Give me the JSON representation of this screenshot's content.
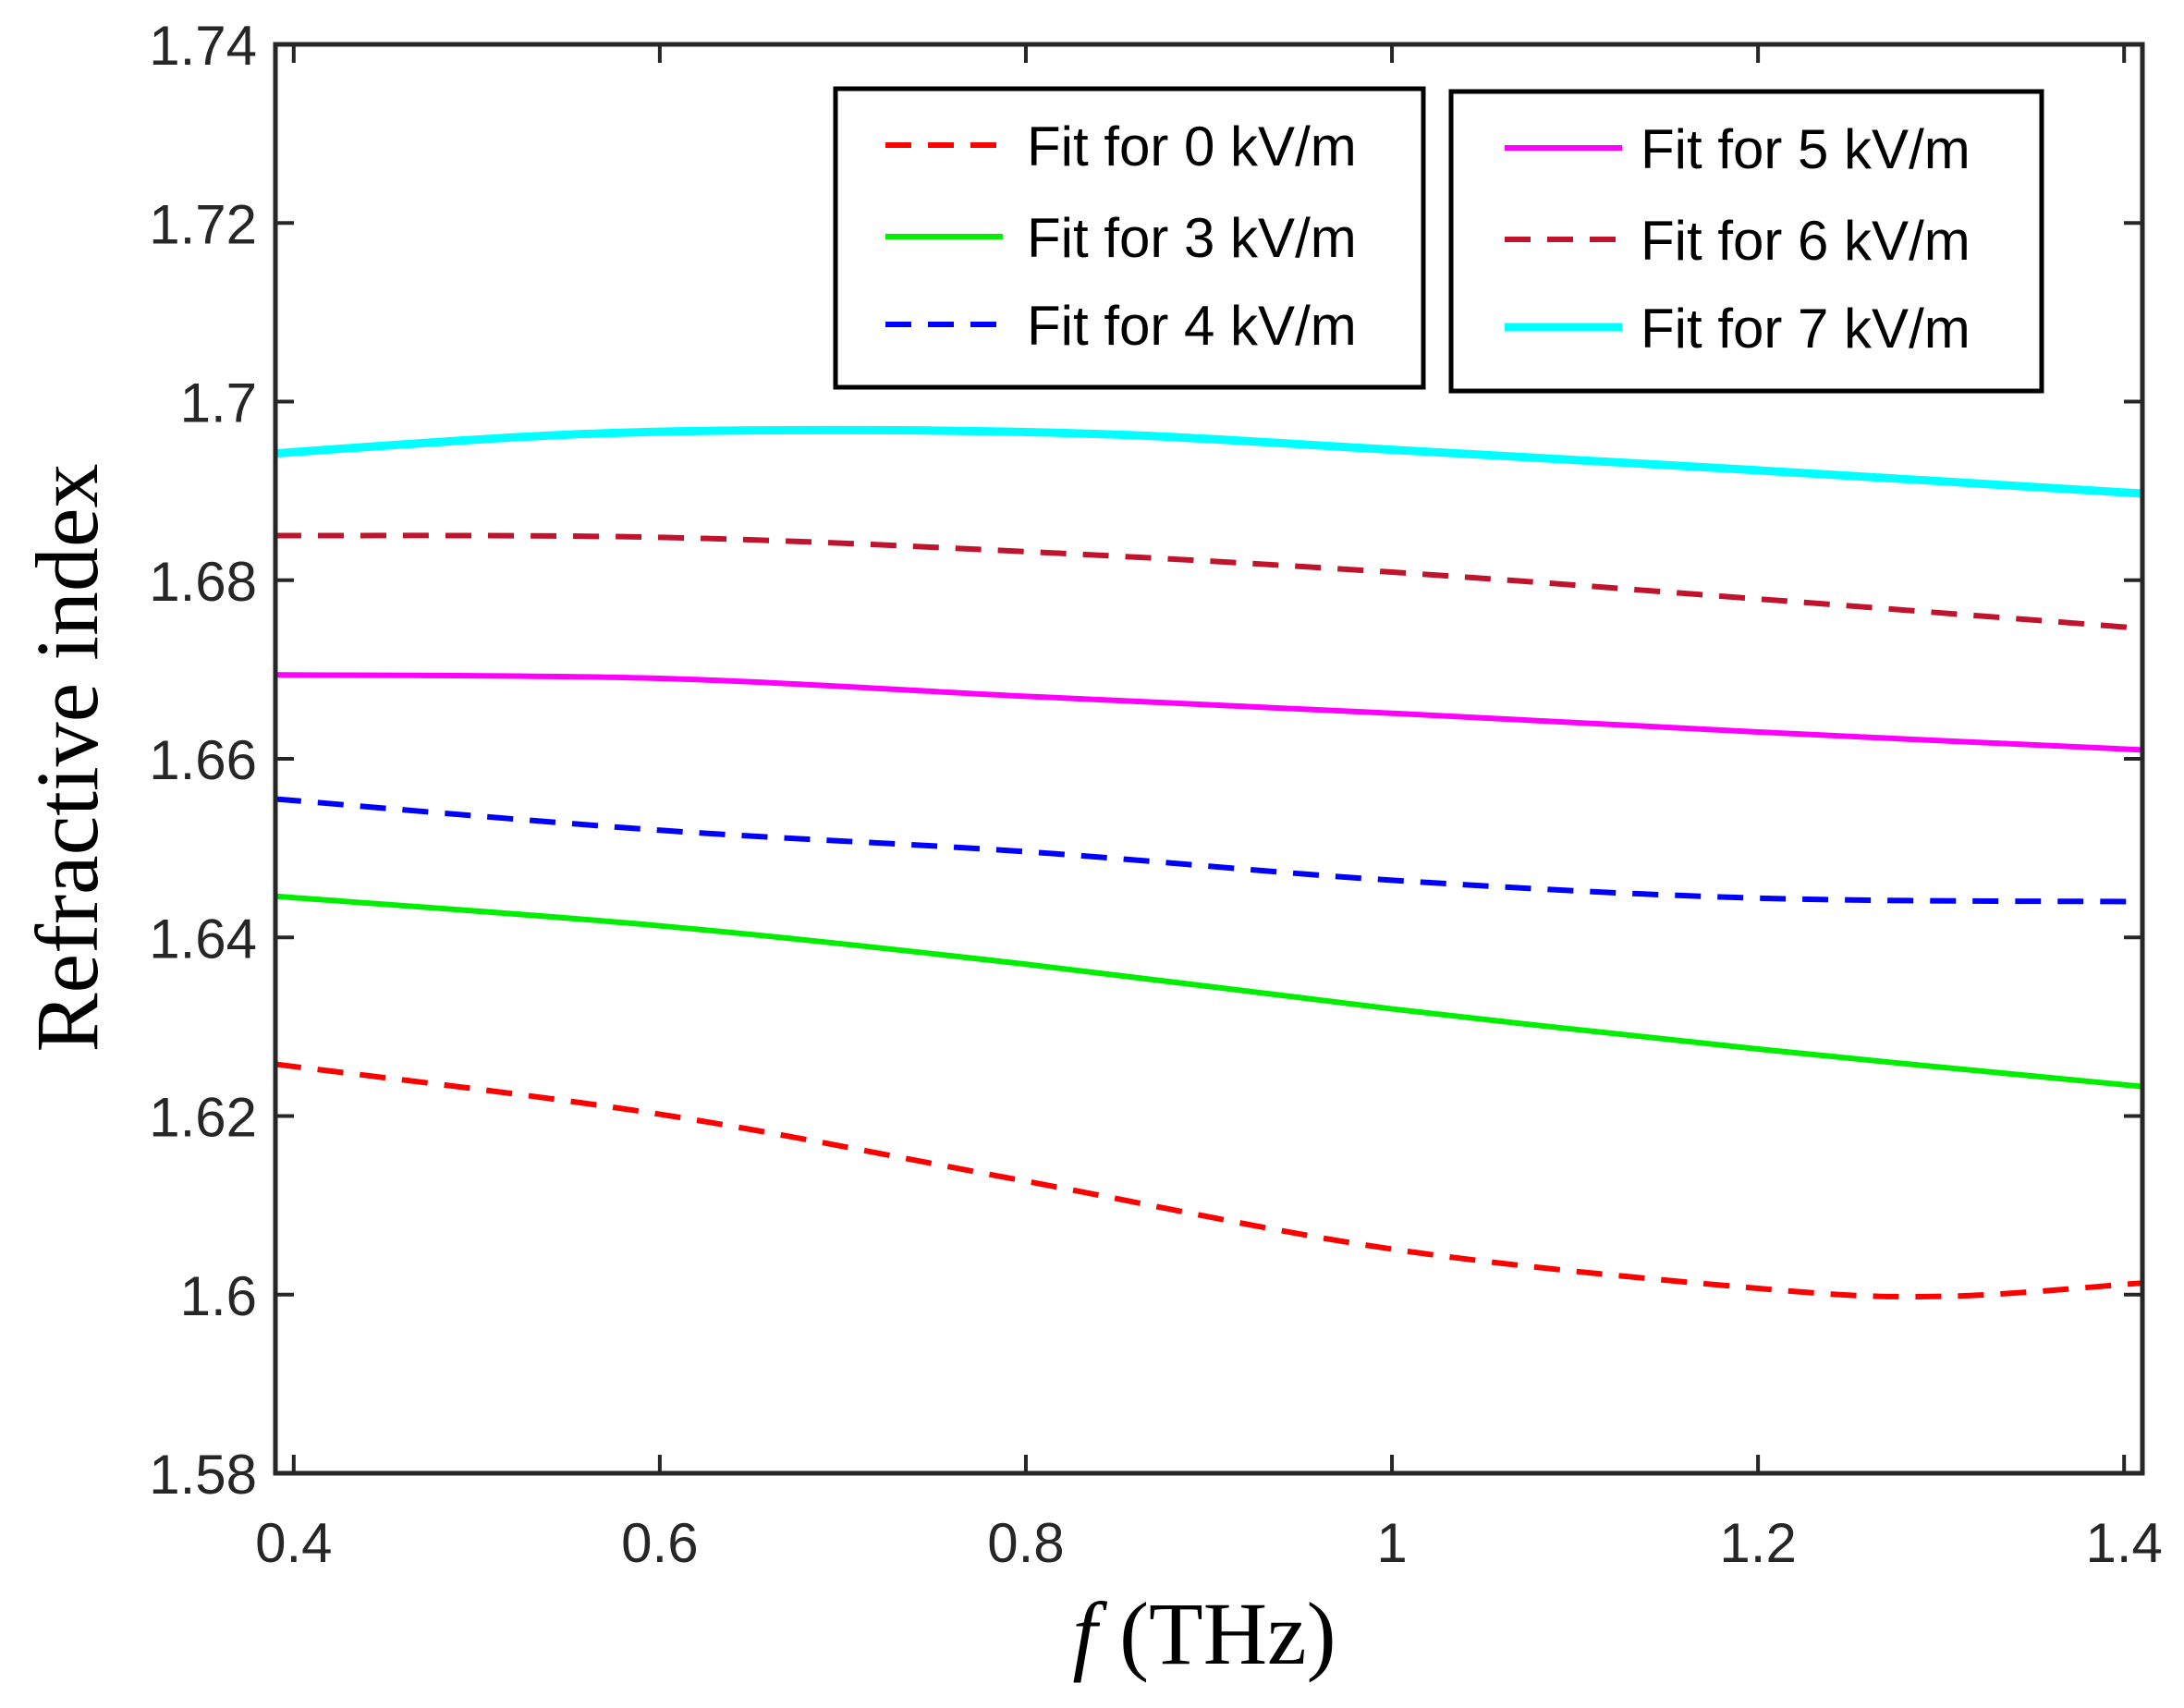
{
  "chart_data": {
    "type": "line",
    "title": "",
    "xlabel_italic": "f",
    "xlabel_rest": " (THz)",
    "ylabel": "Refractive index",
    "xlim": [
      0.39,
      1.41
    ],
    "ylim": [
      1.58,
      1.74
    ],
    "grid": false,
    "legend_placement": "top-right, two boxes",
    "xticks": [
      0.4,
      0.6,
      0.8,
      1,
      1.2,
      1.4
    ],
    "xtick_labels": [
      "0.4",
      "0.6",
      "0.8",
      "1",
      "1.2",
      "1.4"
    ],
    "yticks": [
      1.58,
      1.6,
      1.62,
      1.64,
      1.66,
      1.68,
      1.7,
      1.72,
      1.74
    ],
    "ytick_labels": [
      "1.58",
      "1.6",
      "1.62",
      "1.64",
      "1.66",
      "1.68",
      "1.7",
      "1.72",
      "1.74"
    ],
    "series": [
      {
        "name": "Fit for 0 kV/m",
        "color": "#ff0000",
        "style": "dashed",
        "x": [
          0.39,
          0.6,
          0.8,
          1.0,
          1.2,
          1.3,
          1.41
        ],
        "y": [
          1.6258,
          1.6202,
          1.6127,
          1.6051,
          1.6007,
          1.5998,
          1.6013
        ]
      },
      {
        "name": "Fit for 3 kV/m",
        "color": "#00ee00",
        "style": "solid",
        "x": [
          0.39,
          0.6,
          0.8,
          1.0,
          1.2,
          1.41
        ],
        "y": [
          1.6446,
          1.6413,
          1.637,
          1.632,
          1.6275,
          1.6233
        ]
      },
      {
        "name": "Fit for 4 kV/m",
        "color": "#0000ff",
        "style": "dashed",
        "x": [
          0.39,
          0.6,
          0.8,
          1.0,
          1.2,
          1.41
        ],
        "y": [
          1.6555,
          1.652,
          1.6496,
          1.6464,
          1.6444,
          1.644
        ]
      },
      {
        "name": "Fit for 5 kV/m",
        "color": "#ff00ff",
        "style": "solid",
        "x": [
          0.39,
          0.6,
          0.8,
          1.0,
          1.2,
          1.41
        ],
        "y": [
          1.6694,
          1.669,
          1.667,
          1.6651,
          1.663,
          1.661
        ]
      },
      {
        "name": "Fit for 6 kV/m",
        "color": "#c0142c",
        "style": "dashed",
        "x": [
          0.39,
          0.6,
          0.8,
          1.0,
          1.2,
          1.41
        ],
        "y": [
          1.685,
          1.6848,
          1.6832,
          1.6809,
          1.6779,
          1.6746
        ]
      },
      {
        "name": "Fit for 7 kV/m",
        "color": "#00ffff",
        "style": "solid",
        "x": [
          0.39,
          0.55,
          0.7,
          0.85,
          1.0,
          1.2,
          1.41
        ],
        "y": [
          1.6942,
          1.6963,
          1.6968,
          1.6963,
          1.6946,
          1.6923,
          1.6897
        ]
      }
    ]
  }
}
